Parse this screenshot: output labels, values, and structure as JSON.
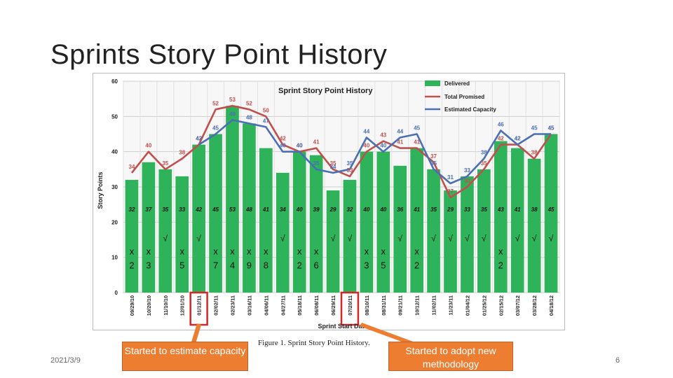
{
  "slide": {
    "title": "Sprints Story Point History",
    "caption": "Figure 1.   Sprint Story Point History.",
    "callout_left": "Started to estimate capacity",
    "callout_right": "Started to adopt new methodology",
    "footer_date": "2021/3/9",
    "page_number": "6"
  },
  "colors": {
    "delivered": "#2fb35a",
    "promised": "#c0504d",
    "capacity": "#4a6fb5",
    "callout": "#ed7d31",
    "highlight": "#d62728"
  },
  "chart_data": {
    "type": "bar",
    "title": "Sprint Story Point History",
    "xlabel": "Sprint Start Date",
    "ylabel": "Story Points",
    "ylim": [
      0,
      60
    ],
    "yticks": [
      "0",
      "10",
      "20",
      "30",
      "40",
      "50",
      "60"
    ],
    "grid": true,
    "legend_position": "top-right",
    "legend": [
      "Delivered",
      "Total Promised",
      "Estimated Capacity"
    ],
    "categories": [
      "09/29/10",
      "10/20/10",
      "11/10/10",
      "12/01/10",
      "01/12/11",
      "02/02/11",
      "02/23/11",
      "03/16/11",
      "04/06/11",
      "04/27/11",
      "05/18/11",
      "06/08/11",
      "06/29/11",
      "07/20/11",
      "08/10/11",
      "08/31/11",
      "09/21/11",
      "10/12/11",
      "11/02/11",
      "11/23/11",
      "01/04/12",
      "01/25/12",
      "02/15/12",
      "03/07/12",
      "03/28/12",
      "04/18/12"
    ],
    "series": [
      {
        "name": "Delivered",
        "kind": "bar",
        "values": [
          32,
          37,
          35,
          33,
          42,
          45,
          53,
          48,
          41,
          34,
          40,
          39,
          29,
          32,
          40,
          40,
          36,
          41,
          35,
          29,
          33,
          35,
          43,
          41,
          38,
          45
        ],
        "labels": [
          "32",
          "37",
          "35",
          "33",
          "42",
          "45",
          "53",
          "48",
          "41",
          "34",
          "40",
          "39",
          "29",
          "32",
          "40",
          "40",
          "36",
          "41",
          "35",
          "29",
          "33",
          "35",
          "43",
          "41",
          "38",
          "45"
        ]
      },
      {
        "name": "Total Promised",
        "kind": "line",
        "values": [
          34,
          40,
          35,
          38,
          42,
          52,
          53,
          52,
          50,
          42,
          40,
          41,
          35,
          33,
          40,
          43,
          41,
          41,
          37,
          27,
          30,
          35,
          42,
          42,
          38,
          45
        ],
        "labels": [
          "34",
          "40",
          "35",
          "38",
          "42",
          "52",
          "53",
          "52",
          "50",
          "42",
          "40",
          "41",
          "35",
          "33",
          "40",
          "43",
          "41",
          "41",
          "37",
          "27",
          "30",
          "35",
          "42",
          "42",
          "38",
          "45"
        ]
      },
      {
        "name": "Estimated Capacity",
        "kind": "line",
        "values": [
          null,
          null,
          null,
          null,
          42,
          45,
          49,
          48,
          47,
          40,
          40,
          35,
          34,
          35,
          44,
          40,
          44,
          45,
          35,
          31,
          33,
          38,
          46,
          42,
          45,
          45
        ],
        "labels": [
          "",
          "",
          "",
          "",
          "42",
          "45",
          "49",
          "48",
          "47",
          "40",
          "40",
          "35",
          "34",
          "35",
          "44",
          "40",
          "44",
          "45",
          "35",
          "31",
          "33",
          "38",
          "46",
          "42",
          "45",
          "45"
        ]
      }
    ],
    "marks": [
      "x",
      "x",
      "√",
      "x",
      "√",
      "x",
      "x",
      "x",
      "x",
      "√",
      "x",
      "x",
      "√",
      "√",
      "x",
      "x",
      "√",
      "x",
      "√",
      "√",
      "√",
      "√",
      "x",
      "√",
      "√",
      "√"
    ],
    "mark_numbers": [
      "2",
      "3",
      "",
      "5",
      "",
      "7",
      "4",
      "9",
      "8",
      "",
      "2",
      "6",
      "",
      "",
      "3",
      "5",
      "",
      "2",
      "",
      "",
      "",
      "",
      "2",
      "",
      "",
      ""
    ],
    "highlighted_categories": [
      "01/12/11",
      "07/20/11"
    ]
  }
}
